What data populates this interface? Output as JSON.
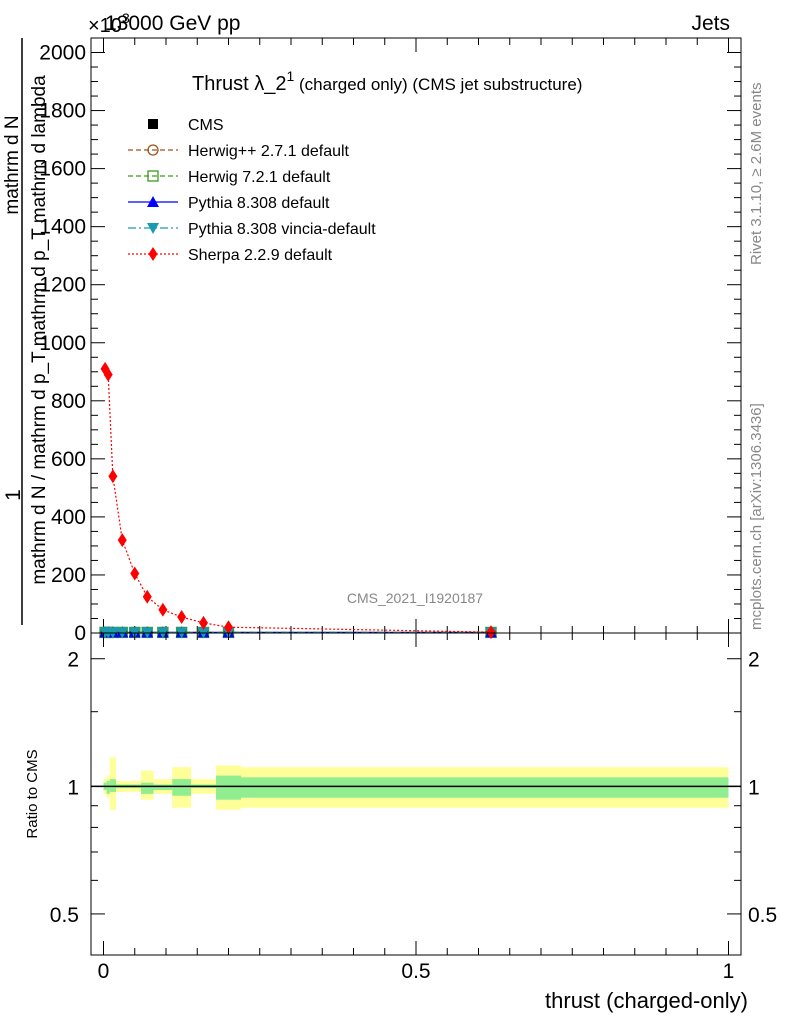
{
  "header": {
    "left": "13000 GeV pp",
    "right": "Jets",
    "multiplier": "×10",
    "multiplier_exp": "3"
  },
  "side_labels": {
    "rivet": "Rivet 3.1.10, ≥ 2.6M events",
    "mcplots": "mcplots.cern.ch [arXiv:1306.3436]"
  },
  "chart_data": [
    {
      "type": "line",
      "title_main": "Thrust λ_2",
      "title_sup": "1",
      "title_rest": " (charged only) (CMS jet substructure)",
      "analysis_label": "CMS_2021_I1920187",
      "ylabel_top": "1",
      "ylabel_num": "mathrm d N",
      "ylabel_den": "mathrm d N / mathrm d p_T mathrm d p_T mathrm d lambda",
      "ylim": [
        0,
        2050
      ],
      "xlim": [
        -0.02,
        1.02
      ],
      "y_multiplier_exp": 3,
      "x_ticks": [
        0,
        0.5,
        1
      ],
      "y_ticks": [
        0,
        200,
        400,
        600,
        800,
        1000,
        1200,
        1400,
        1600,
        1800,
        2000
      ],
      "y_tick_labels": [
        "0",
        "200",
        "400",
        "600",
        "800",
        "1000",
        "1200",
        "1400",
        "1600",
        "1800",
        "2000"
      ],
      "legend_position": "top-left",
      "series": [
        {
          "name": "CMS",
          "style": "marker-square-black",
          "x": [
            0.0025,
            0.0075,
            0.015,
            0.03,
            0.05,
            0.07,
            0.095,
            0.125,
            0.16,
            0.2,
            0.62
          ],
          "y": [
            2,
            2,
            2,
            2,
            2,
            2,
            2,
            2,
            2,
            2,
            2
          ]
        },
        {
          "name": "Herwig++ 2.7.1 default",
          "style": "dashed-brown-open-circle",
          "x": [
            0.0025,
            0.0075,
            0.015,
            0.03,
            0.05,
            0.07,
            0.095,
            0.125,
            0.16,
            0.2,
            0.62
          ],
          "y": [
            2,
            2,
            2,
            2,
            2,
            2,
            2,
            2,
            2,
            2,
            2
          ]
        },
        {
          "name": "Herwig 7.2.1 default",
          "style": "dashed-green-open-square",
          "x": [
            0.0025,
            0.0075,
            0.015,
            0.03,
            0.05,
            0.07,
            0.095,
            0.125,
            0.16,
            0.2,
            0.62
          ],
          "y": [
            2,
            2,
            2,
            2,
            2,
            2,
            2,
            2,
            2,
            2,
            2
          ]
        },
        {
          "name": "Pythia 8.308 default",
          "style": "solid-blue-triangle-up",
          "x": [
            0.0025,
            0.0075,
            0.015,
            0.03,
            0.05,
            0.07,
            0.095,
            0.125,
            0.16,
            0.2,
            0.62
          ],
          "y": [
            2,
            2,
            2,
            2,
            2,
            2,
            2,
            2,
            2,
            2,
            2
          ]
        },
        {
          "name": "Pythia 8.308 vincia-default",
          "style": "dashdot-teal-triangle-down",
          "x": [
            0.0025,
            0.0075,
            0.015,
            0.03,
            0.05,
            0.07,
            0.095,
            0.125,
            0.16,
            0.2,
            0.62
          ],
          "y": [
            2,
            2,
            2,
            2,
            2,
            2,
            2,
            2,
            2,
            2,
            2
          ]
        },
        {
          "name": "Sherpa 2.2.9 default",
          "style": "dotted-red-diamond",
          "x": [
            0.0025,
            0.0075,
            0.015,
            0.03,
            0.05,
            0.07,
            0.095,
            0.125,
            0.16,
            0.2,
            0.62
          ],
          "y": [
            910,
            890,
            540,
            320,
            205,
            125,
            80,
            55,
            35,
            20,
            3
          ]
        }
      ]
    },
    {
      "type": "line",
      "ylabel": "Ratio to CMS",
      "xlabel": "thrust (charged-only)",
      "ylim": [
        0.4,
        2.3
      ],
      "y_scale": "log",
      "xlim": [
        -0.02,
        1.02
      ],
      "x_ticks": [
        0,
        0.5,
        1
      ],
      "x_tick_labels": [
        "0",
        "0.5",
        "1"
      ],
      "y_ticks": [
        0.5,
        1,
        2
      ],
      "y_tick_labels": [
        "0.5",
        "1",
        "2"
      ],
      "bands": {
        "edges": [
          0.0,
          0.005,
          0.01,
          0.02,
          0.04,
          0.06,
          0.08,
          0.11,
          0.14,
          0.18,
          0.22,
          1.0
        ],
        "yellow_lo": [
          0.96,
          0.94,
          0.88,
          0.97,
          0.97,
          0.93,
          0.96,
          0.89,
          0.96,
          0.88,
          0.89,
          0.95
        ],
        "yellow_hi": [
          1.04,
          1.06,
          1.17,
          1.03,
          1.03,
          1.09,
          1.04,
          1.11,
          1.04,
          1.12,
          1.11,
          1.05
        ],
        "green_lo": [
          0.98,
          0.96,
          0.97,
          0.99,
          0.99,
          0.96,
          0.98,
          0.95,
          0.99,
          0.93,
          0.94,
          0.97
        ],
        "green_hi": [
          1.02,
          1.03,
          1.04,
          1.01,
          1.01,
          1.02,
          1.01,
          1.04,
          1.01,
          1.06,
          1.05,
          1.02
        ]
      },
      "reference_line": 1
    }
  ],
  "colors": {
    "cms": "#000000",
    "herwigpp": "#a0521e",
    "herwig7": "#3a9a1a",
    "pythia": "#0000ff",
    "vincia": "#1a9ab0",
    "sherpa": "#ff0000",
    "band_yellow": "#ffff99",
    "band_green": "#90ee90",
    "side_text": "#888888"
  }
}
